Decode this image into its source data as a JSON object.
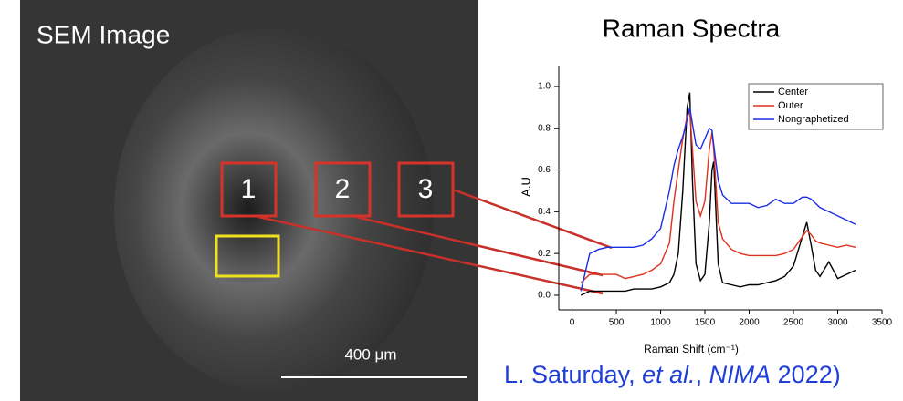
{
  "sem": {
    "title": "SEM Image",
    "boxes": [
      "1",
      "2",
      "3"
    ],
    "scale_bar": "400 μm"
  },
  "citation": {
    "author": "L. Saturday, ",
    "etal": "et al.",
    "sep": ", ",
    "journal": "NIMA",
    "year": " 2022)"
  },
  "chart_data": {
    "type": "line",
    "title": "Raman Spectra",
    "xlabel": "Raman Shift (cm⁻¹)",
    "ylabel": "A.U",
    "x": [
      100,
      200,
      300,
      400,
      500,
      600,
      700,
      800,
      900,
      1000,
      1100,
      1150,
      1200,
      1250,
      1300,
      1330,
      1360,
      1400,
      1450,
      1500,
      1550,
      1580,
      1600,
      1650,
      1700,
      1800,
      1900,
      2000,
      2100,
      2200,
      2300,
      2400,
      2500,
      2600,
      2650,
      2700,
      2750,
      2800,
      2900,
      3000,
      3100,
      3200
    ],
    "series": [
      {
        "name": "Center",
        "color": "#000000",
        "values": [
          0.0,
          0.02,
          0.02,
          0.02,
          0.02,
          0.02,
          0.03,
          0.03,
          0.03,
          0.04,
          0.06,
          0.1,
          0.2,
          0.5,
          0.9,
          0.97,
          0.55,
          0.15,
          0.07,
          0.1,
          0.35,
          0.6,
          0.64,
          0.15,
          0.06,
          0.05,
          0.04,
          0.05,
          0.05,
          0.06,
          0.07,
          0.09,
          0.14,
          0.28,
          0.35,
          0.24,
          0.12,
          0.09,
          0.16,
          0.08,
          0.1,
          0.12
        ]
      },
      {
        "name": "Outer",
        "color": "#e0301e",
        "values": [
          0.06,
          0.1,
          0.1,
          0.1,
          0.1,
          0.08,
          0.09,
          0.1,
          0.12,
          0.15,
          0.25,
          0.45,
          0.6,
          0.75,
          0.86,
          0.88,
          0.7,
          0.45,
          0.38,
          0.45,
          0.7,
          0.78,
          0.7,
          0.35,
          0.27,
          0.22,
          0.2,
          0.19,
          0.19,
          0.19,
          0.19,
          0.2,
          0.22,
          0.28,
          0.31,
          0.29,
          0.26,
          0.25,
          0.24,
          0.23,
          0.24,
          0.23
        ]
      },
      {
        "name": "Nongraphetized",
        "color": "#1a2ee6",
        "values": [
          0.02,
          0.2,
          0.22,
          0.23,
          0.23,
          0.23,
          0.23,
          0.24,
          0.27,
          0.32,
          0.5,
          0.62,
          0.7,
          0.76,
          0.84,
          0.9,
          0.82,
          0.72,
          0.7,
          0.75,
          0.8,
          0.79,
          0.72,
          0.55,
          0.48,
          0.44,
          0.44,
          0.44,
          0.42,
          0.43,
          0.46,
          0.44,
          0.44,
          0.47,
          0.47,
          0.46,
          0.44,
          0.42,
          0.4,
          0.38,
          0.36,
          0.34
        ]
      }
    ],
    "xlim": [
      -150,
      3500
    ],
    "ylim": [
      -0.07,
      1.1
    ],
    "xticks": [
      0,
      500,
      1000,
      1500,
      2000,
      2500,
      3000,
      3500
    ],
    "yticks": [
      {
        "value": 0,
        "label": "0.0"
      },
      0.2,
      0.4,
      0.6,
      0.8,
      {
        "value": 1,
        "label": "1.0"
      }
    ],
    "legend": "upper-right"
  }
}
